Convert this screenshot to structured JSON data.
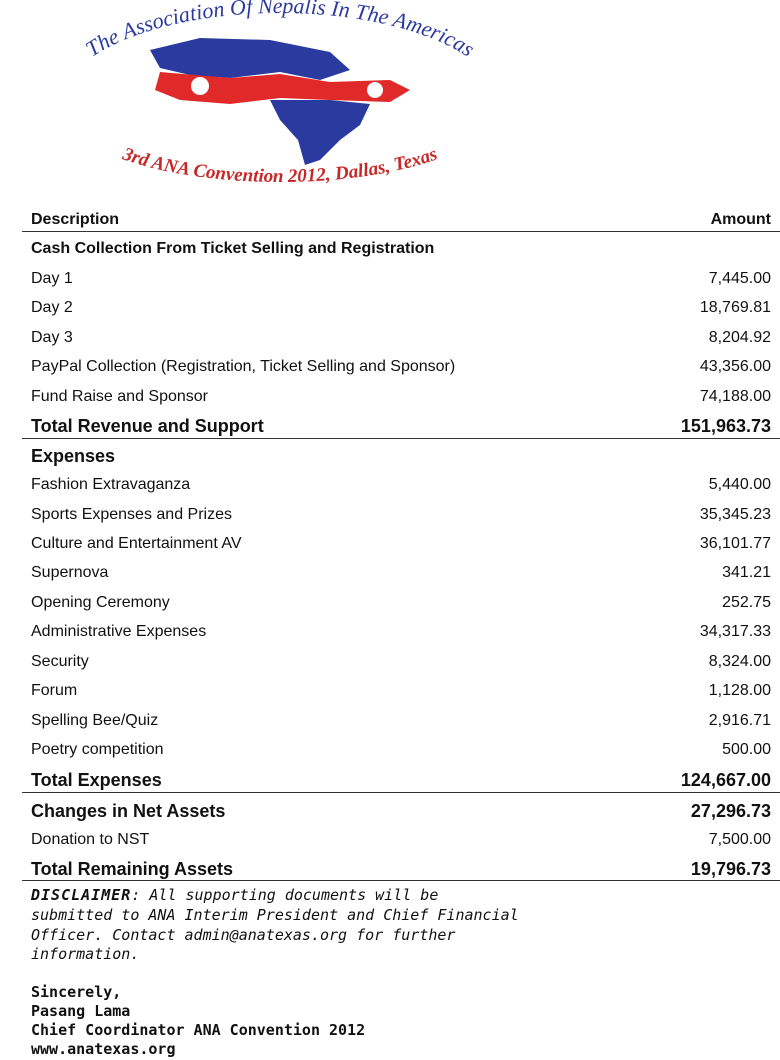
{
  "logo": {
    "top_text": "The Association Of Nepalis In The Americas",
    "bottom_text": "3rd ANA Convention 2012, Dallas, Texas"
  },
  "table": {
    "headers": [
      "Description",
      "Amount"
    ],
    "revenue": {
      "heading": "Cash Collection From Ticket Selling and Registration",
      "items": [
        {
          "label": "Day 1",
          "amount": "7,445.00"
        },
        {
          "label": "Day 2",
          "amount": "18,769.81"
        },
        {
          "label": "Day 3",
          "amount": "8,204.92"
        },
        {
          "label": "PayPal Collection (Registration, Ticket Selling and Sponsor)",
          "amount": "43,356.00"
        },
        {
          "label": "Fund Raise and Sponsor",
          "amount": "74,188.00"
        }
      ],
      "total": {
        "label": "Total Revenue and Support",
        "amount": "151,963.73"
      }
    },
    "expenses": {
      "heading": "Expenses",
      "items": [
        {
          "label": "Fashion Extravaganza",
          "amount": "5,440.00"
        },
        {
          "label": "Sports Expenses and Prizes",
          "amount": "35,345.23"
        },
        {
          "label": "Culture and Entertainment AV",
          "amount": "36,101.77"
        },
        {
          "label": "Supernova",
          "amount": "341.21"
        },
        {
          "label": "Opening Ceremony",
          "amount": "252.75"
        },
        {
          "label": "Administrative Expenses",
          "amount": "34,317.33"
        },
        {
          "label": "Security",
          "amount": "8,324.00"
        },
        {
          "label": "Forum",
          "amount": "1,128.00"
        },
        {
          "label": "Spelling Bee/Quiz",
          "amount": "2,916.71"
        },
        {
          "label": "Poetry competition",
          "amount": "500.00"
        }
      ],
      "total": {
        "label": "Total Expenses",
        "amount": "124,667.00"
      }
    },
    "net": {
      "label": "Changes in Net Assets",
      "amount": "27,296.73"
    },
    "donation": {
      "label": "Donation to NST",
      "amount": "7,500.00"
    },
    "remaining": {
      "label": "Total Remaining Assets",
      "amount": "19,796.73"
    }
  },
  "disclaimer": {
    "label": "DISCLAIMER",
    "lines": [
      ": All supporting documents will be",
      "submitted to ANA Interim President and Chief Financial",
      "Officer. Contact admin@anatexas.org for further",
      "information."
    ]
  },
  "signature": [
    "Sincerely,",
    "Pasang Lama",
    "Chief Coordinator ANA Convention 2012",
    "www.anatexas.org"
  ]
}
